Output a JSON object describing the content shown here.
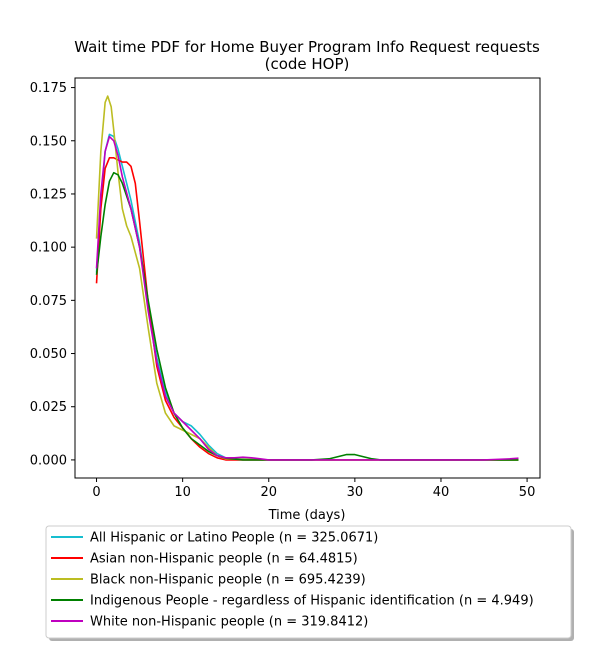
{
  "chart_data": {
    "type": "line",
    "title": "Wait time PDF for Home Buyer Program Info Request  requests",
    "subtitle": "(code HOP)",
    "xlabel": "Time (days)",
    "ylabel": "",
    "xlim": [
      -2.5,
      51.5
    ],
    "ylim": [
      -0.0085,
      0.1795
    ],
    "xticks": [
      0,
      10,
      20,
      30,
      40,
      50
    ],
    "xtick_labels": [
      "0",
      "10",
      "20",
      "30",
      "40",
      "50"
    ],
    "yticks": [
      0.0,
      0.025,
      0.05,
      0.075,
      0.1,
      0.125,
      0.15,
      0.175
    ],
    "ytick_labels": [
      "0.000",
      "0.025",
      "0.050",
      "0.075",
      "0.100",
      "0.125",
      "0.150",
      "0.175"
    ],
    "grid": false,
    "legend_position": "below",
    "series": [
      {
        "name": "All Hispanic or Latino People (n = 325.0671)",
        "color": "#17becf",
        "points": [
          [
            0,
            0.088
          ],
          [
            0.5,
            0.12
          ],
          [
            1,
            0.145
          ],
          [
            1.5,
            0.153
          ],
          [
            2,
            0.152
          ],
          [
            2.5,
            0.146
          ],
          [
            3,
            0.138
          ],
          [
            4,
            0.122
          ],
          [
            5,
            0.102
          ],
          [
            6,
            0.072
          ],
          [
            7,
            0.048
          ],
          [
            8,
            0.032
          ],
          [
            9,
            0.022
          ],
          [
            10,
            0.018
          ],
          [
            11,
            0.016
          ],
          [
            12,
            0.012
          ],
          [
            13,
            0.007
          ],
          [
            14,
            0.003
          ],
          [
            15,
            0.001
          ],
          [
            17,
            0.0005
          ],
          [
            20,
            0.0
          ],
          [
            25,
            0.0
          ],
          [
            30,
            0.0
          ],
          [
            35,
            0.0
          ],
          [
            40,
            0.0
          ],
          [
            45,
            0.0
          ],
          [
            49,
            0.0
          ]
        ]
      },
      {
        "name": "Asian non-Hispanic people (n = 64.4815)",
        "color": "#ff0000",
        "points": [
          [
            0,
            0.083
          ],
          [
            0.5,
            0.118
          ],
          [
            1,
            0.137
          ],
          [
            1.5,
            0.142
          ],
          [
            2,
            0.142
          ],
          [
            3,
            0.14
          ],
          [
            3.5,
            0.14
          ],
          [
            4,
            0.138
          ],
          [
            4.5,
            0.13
          ],
          [
            5,
            0.112
          ],
          [
            6,
            0.074
          ],
          [
            7,
            0.044
          ],
          [
            8,
            0.028
          ],
          [
            9,
            0.02
          ],
          [
            10,
            0.015
          ],
          [
            11,
            0.01
          ],
          [
            12,
            0.006
          ],
          [
            13,
            0.003
          ],
          [
            14,
            0.001
          ],
          [
            15,
            0.0
          ],
          [
            20,
            0.0
          ],
          [
            25,
            0.0
          ],
          [
            30,
            0.0
          ],
          [
            35,
            0.0
          ],
          [
            40,
            0.0
          ],
          [
            45,
            0.0
          ],
          [
            49,
            0.0
          ]
        ]
      },
      {
        "name": "Black non-Hispanic people (n = 695.4239)",
        "color": "#bcbd22",
        "points": [
          [
            0,
            0.104
          ],
          [
            0.5,
            0.145
          ],
          [
            1,
            0.168
          ],
          [
            1.3,
            0.171
          ],
          [
            1.7,
            0.166
          ],
          [
            2,
            0.155
          ],
          [
            2.5,
            0.135
          ],
          [
            3,
            0.118
          ],
          [
            3.5,
            0.11
          ],
          [
            4,
            0.105
          ],
          [
            5,
            0.09
          ],
          [
            6,
            0.062
          ],
          [
            7,
            0.036
          ],
          [
            8,
            0.022
          ],
          [
            9,
            0.016
          ],
          [
            10,
            0.014
          ],
          [
            11,
            0.012
          ],
          [
            12,
            0.01
          ],
          [
            13,
            0.006
          ],
          [
            14,
            0.002
          ],
          [
            15,
            0.0005
          ],
          [
            20,
            0.0
          ],
          [
            25,
            0.0
          ],
          [
            30,
            0.0
          ],
          [
            35,
            0.0
          ],
          [
            40,
            0.0
          ],
          [
            45,
            0.0
          ],
          [
            49,
            0.0
          ]
        ]
      },
      {
        "name": "Indigenous People - regardless of Hispanic identification (n = 4.949)",
        "color": "#008000",
        "points": [
          [
            0,
            0.087
          ],
          [
            0.5,
            0.105
          ],
          [
            1,
            0.12
          ],
          [
            1.5,
            0.131
          ],
          [
            2,
            0.135
          ],
          [
            2.5,
            0.134
          ],
          [
            3,
            0.13
          ],
          [
            4,
            0.118
          ],
          [
            5,
            0.1
          ],
          [
            6,
            0.075
          ],
          [
            7,
            0.052
          ],
          [
            8,
            0.034
          ],
          [
            9,
            0.022
          ],
          [
            10,
            0.015
          ],
          [
            11,
            0.01
          ],
          [
            12,
            0.007
          ],
          [
            13,
            0.004
          ],
          [
            14,
            0.002
          ],
          [
            15,
            0.0008
          ],
          [
            17,
            0.0
          ],
          [
            20,
            0.0
          ],
          [
            25,
            0.0
          ],
          [
            27,
            0.0005
          ],
          [
            28,
            0.0015
          ],
          [
            29,
            0.0025
          ],
          [
            30,
            0.0025
          ],
          [
            31,
            0.0015
          ],
          [
            32,
            0.0005
          ],
          [
            33,
            0.0
          ],
          [
            40,
            0.0
          ],
          [
            45,
            0.0
          ],
          [
            49,
            0.0
          ]
        ]
      },
      {
        "name": "White non-Hispanic people (n = 319.8412)",
        "color": "#bf00bf",
        "points": [
          [
            0,
            0.09
          ],
          [
            0.5,
            0.125
          ],
          [
            1,
            0.145
          ],
          [
            1.5,
            0.152
          ],
          [
            2,
            0.15
          ],
          [
            2.5,
            0.143
          ],
          [
            3,
            0.133
          ],
          [
            4,
            0.118
          ],
          [
            5,
            0.1
          ],
          [
            6,
            0.07
          ],
          [
            7,
            0.046
          ],
          [
            8,
            0.03
          ],
          [
            9,
            0.022
          ],
          [
            10,
            0.018
          ],
          [
            11,
            0.014
          ],
          [
            12,
            0.01
          ],
          [
            13,
            0.005
          ],
          [
            14,
            0.002
          ],
          [
            15,
            0.001
          ],
          [
            16,
            0.001
          ],
          [
            17,
            0.0013
          ],
          [
            18,
            0.001
          ],
          [
            19,
            0.0005
          ],
          [
            20,
            0.0
          ],
          [
            25,
            0.0
          ],
          [
            30,
            0.0
          ],
          [
            35,
            0.0
          ],
          [
            40,
            0.0
          ],
          [
            45,
            0.0
          ],
          [
            48,
            0.0005
          ],
          [
            49,
            0.0008
          ]
        ]
      }
    ]
  }
}
